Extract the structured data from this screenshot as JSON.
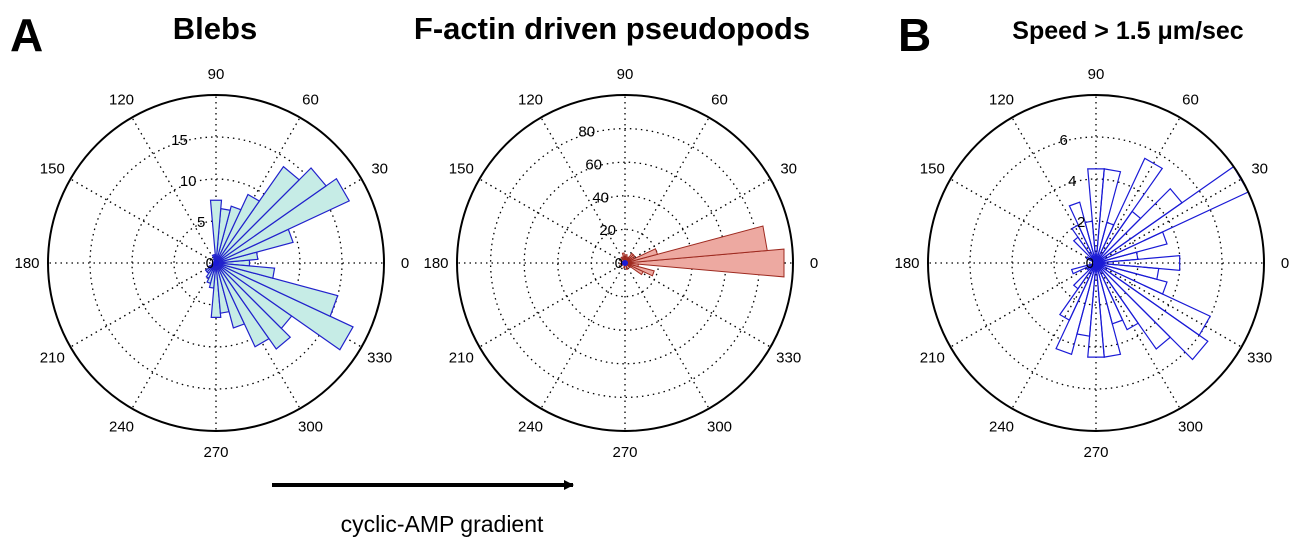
{
  "panel_letters": {
    "a": "A",
    "b": "B"
  },
  "caption": "cyclic-AMP gradient",
  "colors": {
    "blebs_fill": "#c6ece6",
    "blebs_stroke": "#2222cc",
    "pseudopod_fill": "#eda9a1",
    "pseudopod_stroke": "#9e2a20",
    "speed_stroke": "#1a1ad6",
    "grid": "#000000"
  },
  "chart_data": [
    {
      "type": "polar-histogram",
      "title": "Blebs",
      "angle_ticks": [
        "0",
        "30",
        "60",
        "90",
        "120",
        "150",
        "180",
        "210",
        "240",
        "270",
        "300",
        "330"
      ],
      "radial_ticks": [
        "0",
        "5",
        "10",
        "15"
      ],
      "rmax": 20,
      "bin_width_deg": 10,
      "bins": [
        {
          "center": 0,
          "value": 4
        },
        {
          "center": 10,
          "value": 5
        },
        {
          "center": 20,
          "value": 9.5
        },
        {
          "center": 30,
          "value": 17.5
        },
        {
          "center": 40,
          "value": 16
        },
        {
          "center": 50,
          "value": 14
        },
        {
          "center": 60,
          "value": 9
        },
        {
          "center": 70,
          "value": 7
        },
        {
          "center": 80,
          "value": 6.5
        },
        {
          "center": 90,
          "value": 7.5
        },
        {
          "center": 100,
          "value": 1
        },
        {
          "center": 110,
          "value": 1
        },
        {
          "center": 120,
          "value": 0.5
        },
        {
          "center": 200,
          "value": 0.5
        },
        {
          "center": 210,
          "value": 1
        },
        {
          "center": 220,
          "value": 1.5
        },
        {
          "center": 230,
          "value": 1.5
        },
        {
          "center": 240,
          "value": 2
        },
        {
          "center": 250,
          "value": 2.5
        },
        {
          "center": 260,
          "value": 3
        },
        {
          "center": 270,
          "value": 6.5
        },
        {
          "center": 280,
          "value": 6
        },
        {
          "center": 290,
          "value": 8
        },
        {
          "center": 300,
          "value": 11
        },
        {
          "center": 310,
          "value": 12.5
        },
        {
          "center": 320,
          "value": 11
        },
        {
          "center": 330,
          "value": 18
        },
        {
          "center": 340,
          "value": 15
        },
        {
          "center": 350,
          "value": 7
        }
      ]
    },
    {
      "type": "polar-histogram",
      "title": "F-actin driven pseudopods",
      "angle_ticks": [
        "0",
        "30",
        "60",
        "90",
        "120",
        "150",
        "180",
        "210",
        "240",
        "270",
        "300",
        "330"
      ],
      "radial_ticks": [
        "0",
        "20",
        "40",
        "60",
        "80"
      ],
      "rmax": 100,
      "bin_width_deg": 10,
      "bins": [
        {
          "center": 0,
          "value": 95
        },
        {
          "center": 10,
          "value": 85
        },
        {
          "center": 20,
          "value": 20
        },
        {
          "center": 30,
          "value": 6
        },
        {
          "center": 40,
          "value": 7
        },
        {
          "center": 50,
          "value": 7
        },
        {
          "center": 60,
          "value": 4
        },
        {
          "center": 80,
          "value": 5
        },
        {
          "center": 100,
          "value": 6
        },
        {
          "center": 120,
          "value": 4
        },
        {
          "center": 150,
          "value": 3
        },
        {
          "center": 190,
          "value": 3
        },
        {
          "center": 220,
          "value": 2
        },
        {
          "center": 260,
          "value": 3
        },
        {
          "center": 290,
          "value": 4
        },
        {
          "center": 320,
          "value": 4
        },
        {
          "center": 330,
          "value": 12
        },
        {
          "center": 340,
          "value": 18
        },
        {
          "center": 350,
          "value": 8
        }
      ]
    },
    {
      "type": "polar-histogram",
      "title": "Speed > 1.5 μm/sec",
      "angle_ticks": [
        "0",
        "30",
        "60",
        "90",
        "120",
        "150",
        "180",
        "210",
        "240",
        "270",
        "300",
        "330"
      ],
      "radial_ticks": [
        "0",
        "2",
        "4",
        "6"
      ],
      "rmax": 8,
      "bin_width_deg": 10,
      "bins": [
        {
          "center": 0,
          "value": 4
        },
        {
          "center": 10,
          "value": 2
        },
        {
          "center": 20,
          "value": 3.5
        },
        {
          "center": 30,
          "value": 8
        },
        {
          "center": 40,
          "value": 5
        },
        {
          "center": 50,
          "value": 3
        },
        {
          "center": 60,
          "value": 5.5
        },
        {
          "center": 70,
          "value": 2
        },
        {
          "center": 80,
          "value": 4.5
        },
        {
          "center": 90,
          "value": 4.5
        },
        {
          "center": 100,
          "value": 2
        },
        {
          "center": 110,
          "value": 3
        },
        {
          "center": 120,
          "value": 2
        },
        {
          "center": 130,
          "value": 1.5
        },
        {
          "center": 150,
          "value": 0.5
        },
        {
          "center": 200,
          "value": 1.2
        },
        {
          "center": 210,
          "value": 0.5
        },
        {
          "center": 220,
          "value": 0.5
        },
        {
          "center": 230,
          "value": 1.5
        },
        {
          "center": 240,
          "value": 3
        },
        {
          "center": 250,
          "value": 4.5
        },
        {
          "center": 260,
          "value": 3.5
        },
        {
          "center": 270,
          "value": 4.5
        },
        {
          "center": 280,
          "value": 4.5
        },
        {
          "center": 290,
          "value": 3
        },
        {
          "center": 300,
          "value": 3.5
        },
        {
          "center": 310,
          "value": 5
        },
        {
          "center": 320,
          "value": 6.5
        },
        {
          "center": 330,
          "value": 6
        },
        {
          "center": 340,
          "value": 3.5
        },
        {
          "center": 350,
          "value": 3
        }
      ]
    }
  ]
}
